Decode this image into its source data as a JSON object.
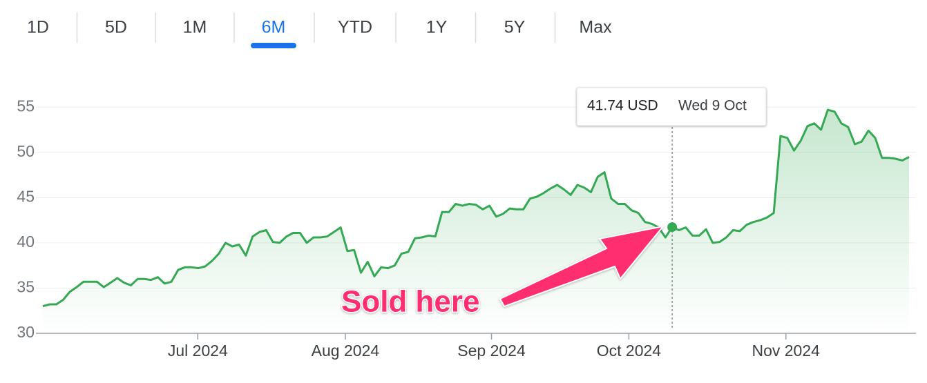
{
  "tabs": {
    "items": [
      "1D",
      "5D",
      "1M",
      "6M",
      "YTD",
      "1Y",
      "5Y",
      "Max"
    ],
    "selected": "6M"
  },
  "chart_data": {
    "type": "line",
    "color": "#34a853",
    "values": [
      33.0,
      33.2,
      33.2,
      33.7,
      34.6,
      35.1,
      35.7,
      35.7,
      35.7,
      35.1,
      35.6,
      36.1,
      35.6,
      35.3,
      36.0,
      36.0,
      35.9,
      36.2,
      35.5,
      35.7,
      37.0,
      37.3,
      37.3,
      37.2,
      37.4,
      38.0,
      38.8,
      40.0,
      39.6,
      39.8,
      38.6,
      40.7,
      41.2,
      41.4,
      40.1,
      40.0,
      40.7,
      41.1,
      41.1,
      40.0,
      40.6,
      40.6,
      40.7,
      41.2,
      41.7,
      39.1,
      39.2,
      36.7,
      37.9,
      36.3,
      37.3,
      37.2,
      37.5,
      38.8,
      39.0,
      40.5,
      40.6,
      40.8,
      40.7,
      43.4,
      43.4,
      44.3,
      44.1,
      44.3,
      44.2,
      43.7,
      44.1,
      42.9,
      43.2,
      43.8,
      43.7,
      43.7,
      44.9,
      45.1,
      45.5,
      46.0,
      46.4,
      45.9,
      45.3,
      46.4,
      46.1,
      45.6,
      47.3,
      47.8,
      44.9,
      44.3,
      44.3,
      43.6,
      43.3,
      42.3,
      42.1,
      41.7,
      40.6,
      41.74,
      41.4,
      41.7,
      40.8,
      40.8,
      41.5,
      40.0,
      40.1,
      40.6,
      41.4,
      41.3,
      42.0,
      42.3,
      42.5,
      42.8,
      43.3,
      51.8,
      51.6,
      50.2,
      51.3,
      52.9,
      53.2,
      52.5,
      54.7,
      54.5,
      53.2,
      52.8,
      50.9,
      51.2,
      52.4,
      51.6,
      49.4,
      49.4,
      49.3,
      49.1,
      49.5
    ],
    "xlim": [
      0,
      128
    ],
    "xticks": [
      {
        "value": 22.9,
        "label": "Jul 2024"
      },
      {
        "value": 44.7,
        "label": "Aug 2024"
      },
      {
        "value": 66.3,
        "label": "Sep 2024"
      },
      {
        "value": 86.6,
        "label": "Oct 2024"
      },
      {
        "value": 109.8,
        "label": "Nov 2024"
      }
    ],
    "ylim": [
      30,
      55.4
    ],
    "yticks": [
      30,
      35,
      40,
      45,
      50,
      55
    ],
    "grid": true,
    "tooltip": {
      "x": 93,
      "value": 41.74,
      "value_label": "41.74 USD",
      "date": "Wed 9 Oct"
    },
    "annotation": "Sold here"
  }
}
